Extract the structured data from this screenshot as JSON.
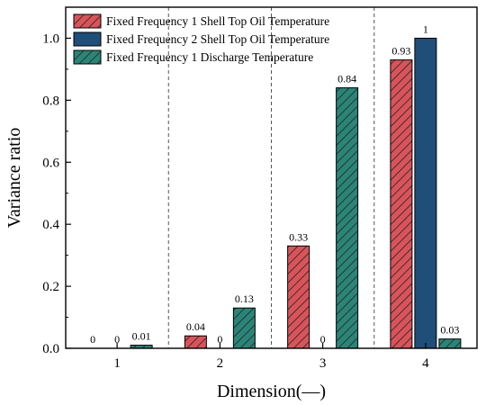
{
  "chart_data": {
    "type": "bar",
    "title": "",
    "xlabel": "Dimension(—)",
    "ylabel": "Variance ratio",
    "categories": [
      "1",
      "2",
      "3",
      "4"
    ],
    "ylim": [
      0,
      1.1
    ],
    "yticks": [
      "0.0",
      "0.2",
      "0.4",
      "0.6",
      "0.8",
      "1.0"
    ],
    "grid": "vertical dashed separators between categories",
    "legend_position": "top-left",
    "series": [
      {
        "name": "Fixed Frequency 1 Shell Top Oil Temperature",
        "values": [
          0,
          0.04,
          0.33,
          0.93
        ],
        "labels": [
          "0",
          "0.04",
          "0.33",
          "0.93"
        ],
        "color": "#d9545a",
        "pattern": "hatch-diagonal"
      },
      {
        "name": "Fixed Frequency 2 Shell Top Oil Temperature",
        "values": [
          0,
          0,
          0,
          1
        ],
        "labels": [
          "0",
          "0",
          "0",
          "1"
        ],
        "color": "#1f4e79",
        "pattern": "solid"
      },
      {
        "name": "Fixed Frequency 1 Discharge Temperature",
        "values": [
          0.01,
          0.13,
          0.84,
          0.03
        ],
        "labels": [
          "0.01",
          "0.13",
          "0.84",
          "0.03"
        ],
        "color": "#2a8577",
        "pattern": "hatch-diagonal"
      }
    ]
  }
}
